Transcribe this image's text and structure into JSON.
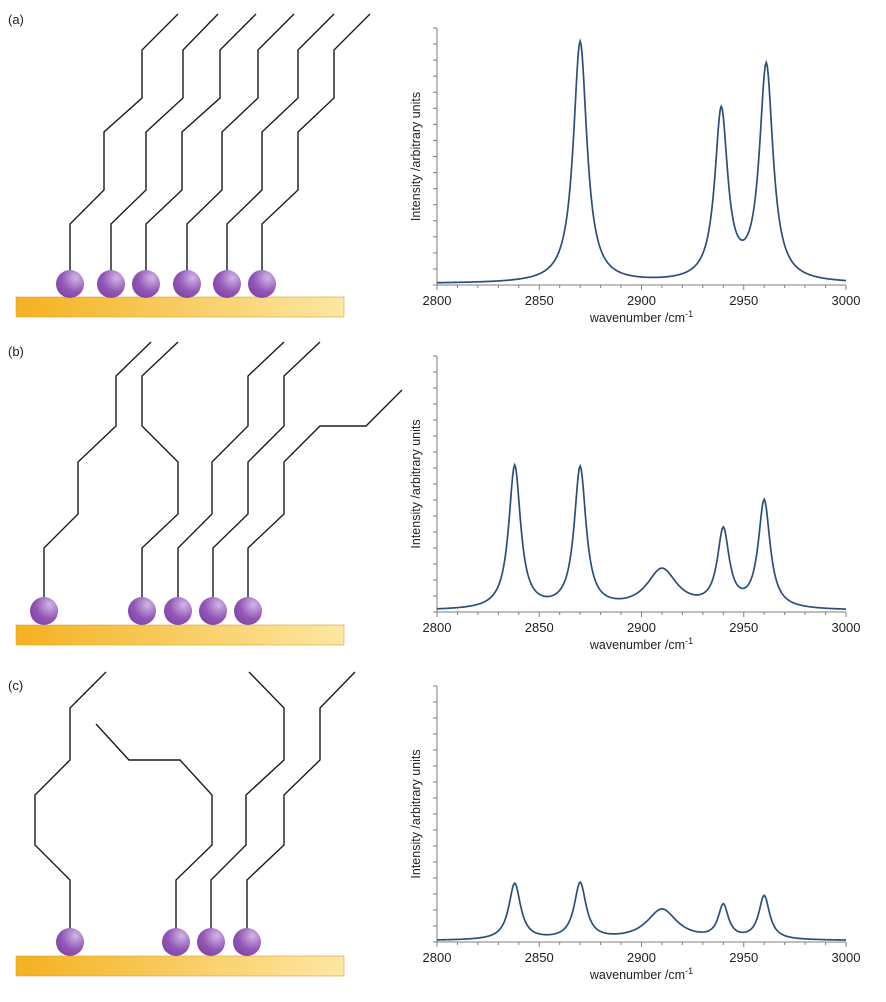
{
  "colors": {
    "chain": "#1a1a1a",
    "headgroup": "#9257b6",
    "headgroup_highlight": "#d2b6e6",
    "substrate_left": "#f4b120",
    "substrate_right": "#fde7a3",
    "spectrum_line": "#2b4f7c",
    "axis": "#7f7f7f"
  },
  "panels": [
    {
      "label": "(a)",
      "headgroups": 6,
      "description_chains": "all-trans chains"
    },
    {
      "label": "(b)",
      "headgroups": 5,
      "description_chains": "chains with gauche defects"
    },
    {
      "label": "(c)",
      "headgroups": 4,
      "description_chains": "disordered chains"
    }
  ],
  "chart_data": [
    {
      "type": "line",
      "panel": "(a)",
      "xlabel": "wavenumber /cm",
      "xlabel_superscript": "-1",
      "ylabel": "Intensity /arbitrary units",
      "xlim": [
        2800,
        3000
      ],
      "ylim": [
        0,
        1
      ],
      "xticks": [
        "2800",
        "2850",
        "2900",
        "2950",
        "3000"
      ],
      "y_minor_ticks": 16,
      "series": [
        {
          "peaks": [
            {
              "center": 2870,
              "height": 0.94,
              "width": 4.0
            },
            {
              "center": 2939,
              "height": 0.66,
              "width": 3.8
            },
            {
              "center": 2961,
              "height": 0.84,
              "width": 4.0
            }
          ]
        }
      ]
    },
    {
      "type": "line",
      "panel": "(b)",
      "xlabel": "wavenumber /cm",
      "xlabel_superscript": "-1",
      "ylabel": "Intensity /arbitrary units",
      "xlim": [
        2800,
        3000
      ],
      "ylim": [
        0,
        1
      ],
      "xticks": [
        "2800",
        "2850",
        "2900",
        "2950",
        "3000"
      ],
      "y_minor_ticks": 16,
      "series": [
        {
          "peaks": [
            {
              "center": 2838,
              "height": 0.56,
              "width": 3.5
            },
            {
              "center": 2870,
              "height": 0.55,
              "width": 3.5
            },
            {
              "center": 2910,
              "height": 0.155,
              "width": 9.0
            },
            {
              "center": 2940,
              "height": 0.3,
              "width": 3.5
            },
            {
              "center": 2960,
              "height": 0.42,
              "width": 3.5
            }
          ]
        }
      ]
    },
    {
      "type": "line",
      "panel": "(c)",
      "xlabel": "wavenumber /cm",
      "xlabel_superscript": "-1",
      "ylabel": "Intensity /arbitrary units",
      "xlim": [
        2800,
        3000
      ],
      "ylim": [
        0,
        1
      ],
      "xticks": [
        "2800",
        "2850",
        "2900",
        "2950",
        "3000"
      ],
      "y_minor_ticks": 16,
      "series": [
        {
          "peaks": [
            {
              "center": 2838,
              "height": 0.22,
              "width": 3.5
            },
            {
              "center": 2870,
              "height": 0.22,
              "width": 3.5
            },
            {
              "center": 2910,
              "height": 0.12,
              "width": 9.0
            },
            {
              "center": 2940,
              "height": 0.13,
              "width": 3.0
            },
            {
              "center": 2960,
              "height": 0.17,
              "width": 3.2
            }
          ]
        }
      ]
    }
  ]
}
